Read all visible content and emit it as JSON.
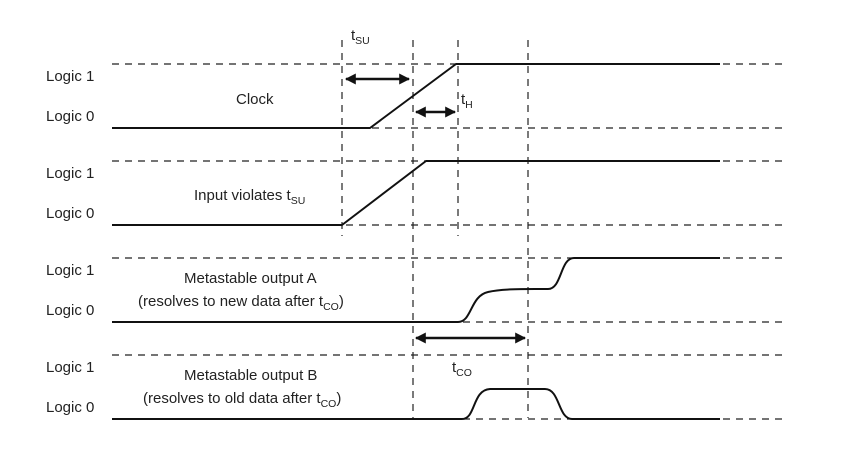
{
  "levels": {
    "high": "Logic 1",
    "low": "Logic 0"
  },
  "signals": {
    "clock": {
      "label": "Clock"
    },
    "input": {
      "label_prefix": "Input violates t",
      "label_sub": "SU"
    },
    "outA": {
      "line1": "Metastable output A",
      "line2_prefix": "(resolves to new data after t",
      "line2_sub": "CO",
      "line2_suffix": ")"
    },
    "outB": {
      "line1": "Metastable output B",
      "line2_prefix": "(resolves to old data after t",
      "line2_sub": "CO",
      "line2_suffix": ")"
    }
  },
  "timing": {
    "tsu": {
      "main": "t",
      "sub": "SU"
    },
    "th": {
      "main": "t",
      "sub": "H"
    },
    "tco": {
      "main": "t",
      "sub": "CO"
    }
  }
}
